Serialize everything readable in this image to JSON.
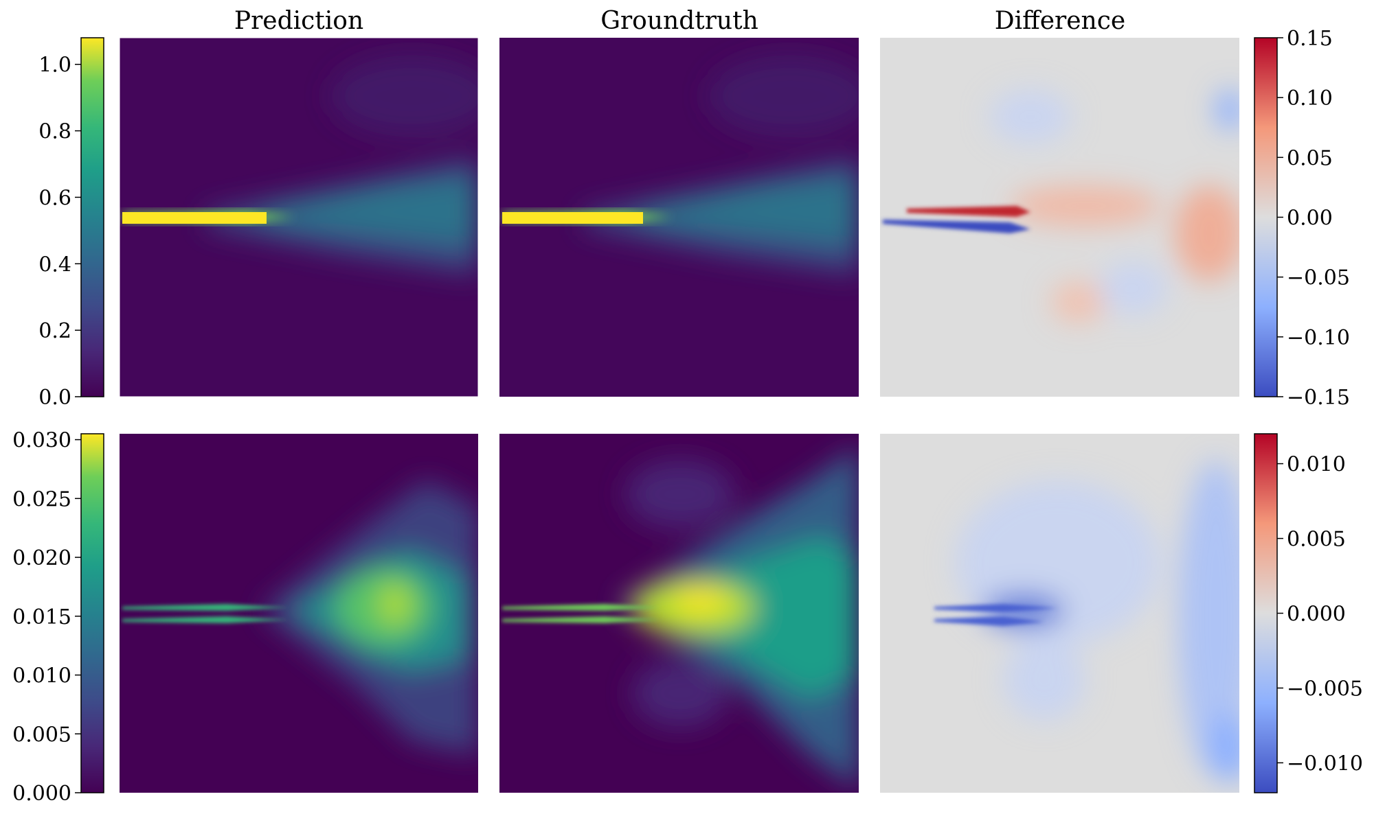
{
  "columns": [
    "Prediction",
    "Groundtruth",
    "Difference"
  ],
  "chart_data": [
    {
      "type": "heatmap",
      "row": 1,
      "panels": [
        "Prediction",
        "Groundtruth",
        "Difference"
      ],
      "colormap_field": "viridis",
      "colormap_diff": "coolwarm",
      "field_range": [
        0.0,
        1.08
      ],
      "field_ticks": [
        "0.0",
        "0.2",
        "0.4",
        "0.6",
        "0.8",
        "1.0"
      ],
      "field_tick_values": [
        0.0,
        0.2,
        0.4,
        0.6,
        0.8,
        1.0
      ],
      "diff_range": [
        -0.15,
        0.15
      ],
      "diff_ticks": [
        "−0.15",
        "−0.10",
        "−0.05",
        "0.00",
        "0.05",
        "0.10",
        "0.15"
      ],
      "diff_tick_values": [
        -0.15,
        -0.1,
        -0.05,
        0.0,
        0.05,
        0.1,
        0.15
      ]
    },
    {
      "type": "heatmap",
      "row": 2,
      "panels": [
        "Prediction",
        "Groundtruth",
        "Difference"
      ],
      "colormap_field": "viridis",
      "colormap_diff": "coolwarm",
      "field_range": [
        0.0,
        0.0305
      ],
      "field_ticks": [
        "0.000",
        "0.005",
        "0.010",
        "0.015",
        "0.020",
        "0.025",
        "0.030"
      ],
      "field_tick_values": [
        0.0,
        0.005,
        0.01,
        0.015,
        0.02,
        0.025,
        0.03
      ],
      "diff_range": [
        -0.012,
        0.012
      ],
      "diff_ticks": [
        "−0.010",
        "−0.005",
        "0.000",
        "0.005",
        "0.010"
      ],
      "diff_tick_values": [
        -0.01,
        -0.005,
        0.0,
        0.005,
        0.01
      ]
    }
  ]
}
